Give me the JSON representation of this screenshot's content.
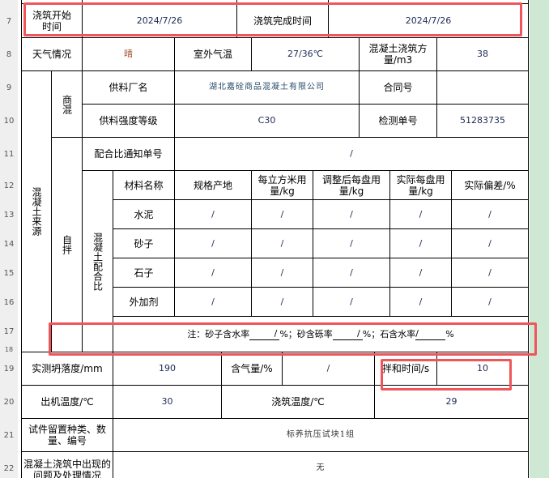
{
  "row_numbers": [
    "7",
    "8",
    "9",
    "10",
    "11",
    "12",
    "13",
    "14",
    "15",
    "16",
    "17",
    "18",
    "19",
    "20",
    "21",
    "22"
  ],
  "row7": {
    "start_label": "浇筑开始时间",
    "start_value": "2024/7/26",
    "end_label": "浇筑完成时间",
    "end_value": "2024/7/26"
  },
  "row8": {
    "weather_label": "天气情况",
    "weather_value": "晴",
    "temp_label": "室外气温",
    "temp_value": "27/36℃",
    "volume_label": "混凝土浇筑方量/m3",
    "volume_value": "38"
  },
  "source": {
    "label": "混凝土来源",
    "commercial_label": "商混",
    "self_label": "自拌",
    "mix_label": "混凝土配合比"
  },
  "row9": {
    "supplier_label": "供料厂名",
    "supplier_value": "湖北嘉硂商品混凝土有限公司",
    "contract_label": "合同号",
    "contract_value": ""
  },
  "row10": {
    "grade_label": "供料强度等级",
    "grade_value": "C30",
    "test_label": "检测单号",
    "test_value": "51283735"
  },
  "row11": {
    "notice_label": "配合比通知单号",
    "notice_value": "/"
  },
  "mix_table": {
    "headers": [
      "材料名称",
      "规格产地",
      "每立方米用量/kg",
      "调整后每盘用量/kg",
      "实际每盘用量/kg",
      "实际偏差/%"
    ],
    "rows": [
      {
        "name": "水泥",
        "values": [
          "/",
          "/",
          "/",
          "/",
          "/"
        ]
      },
      {
        "name": "砂子",
        "values": [
          "/",
          "/",
          "/",
          "/",
          "/"
        ]
      },
      {
        "name": "石子",
        "values": [
          "/",
          "/",
          "/",
          "/",
          "/"
        ]
      },
      {
        "name": "外加剂",
        "values": [
          "/",
          "/",
          "/",
          "/",
          "/"
        ]
      }
    ]
  },
  "note": {
    "prefix": "注：砂子含水率",
    "v1": "/",
    "sep1": "%；砂含砾率",
    "v2": "/",
    "sep2": "%；石含水率",
    "v3": "/",
    "suffix": "%"
  },
  "row19": {
    "slump_label": "实测坍落度/mm",
    "slump_value": "190",
    "air_label": "含气量/%",
    "air_value": "/",
    "mix_time_label": "拌和时间/s",
    "mix_time_value": "10"
  },
  "row20": {
    "out_temp_label": "出机温度/℃",
    "out_temp_value": "30",
    "pour_temp_label": "浇筑温度/℃",
    "pour_temp_value": "29"
  },
  "row21": {
    "label": "试件留置种类、数量、编号",
    "value": "标养抗压试块1组"
  },
  "row22": {
    "label": "混凝土浇筑中出现的问题及处理情况",
    "value": "无"
  }
}
